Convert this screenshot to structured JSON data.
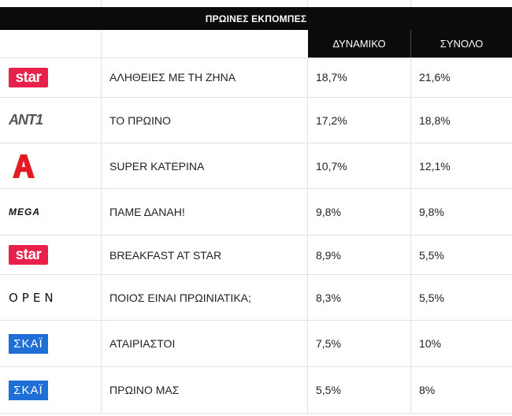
{
  "table": {
    "title": "ΠΡΩΙΝΕΣ ΕΚΠΟΜΠΕΣ",
    "columns": {
      "dynamic": "ΔΥΝΑΜΙΚΟ",
      "total": "ΣΥΝΟΛΟ"
    },
    "rows": [
      {
        "channel": "star",
        "logo_text": "star",
        "show": "ΑΛΗΘΕΙΕΣ ΜΕ ΤΗ ΖΗΝΑ",
        "dynamic": "18,7%",
        "total": "21,6%"
      },
      {
        "channel": "ant1",
        "logo_text": "ANT1",
        "show": "ΤΟ ΠΡΩΙΝΟ",
        "dynamic": "17,2%",
        "total": "18,8%"
      },
      {
        "channel": "alpha",
        "logo_text": "",
        "show": "SUPER ΚΑΤΕΡΙΝΑ",
        "dynamic": "10,7%",
        "total": "12,1%"
      },
      {
        "channel": "mega",
        "logo_text": "MEGA",
        "show": "ΠΑΜΕ ΔΑΝΑΗ!",
        "dynamic": "9,8%",
        "total": "9,8%"
      },
      {
        "channel": "star",
        "logo_text": "star",
        "show": "BREAKFAST AT STAR",
        "dynamic": "8,9%",
        "total": "5,5%"
      },
      {
        "channel": "open",
        "logo_text": "OPEN",
        "show": "ΠΟΙΟΣ ΕΙΝΑΙ ΠΡΩΙΝΙΑΤΙΚΑ;",
        "dynamic": "8,3%",
        "total": "5,5%"
      },
      {
        "channel": "skai",
        "logo_text": "ΣΚΑΪ",
        "show": "ΑΤΑΙΡΙΑΣΤΟΙ",
        "dynamic": "7,5%",
        "total": "10%"
      },
      {
        "channel": "skai",
        "logo_text": "ΣΚΑΪ",
        "show": "ΠΡΩΙΝΟ ΜΑΣ",
        "dynamic": "5,5%",
        "total": "8%"
      }
    ]
  },
  "colors": {
    "header_bg": "#0b0b0b",
    "star": "#e8214b",
    "skai": "#1f6fd6",
    "alpha": "#e31b23",
    "grid": "#e2e2e2"
  }
}
